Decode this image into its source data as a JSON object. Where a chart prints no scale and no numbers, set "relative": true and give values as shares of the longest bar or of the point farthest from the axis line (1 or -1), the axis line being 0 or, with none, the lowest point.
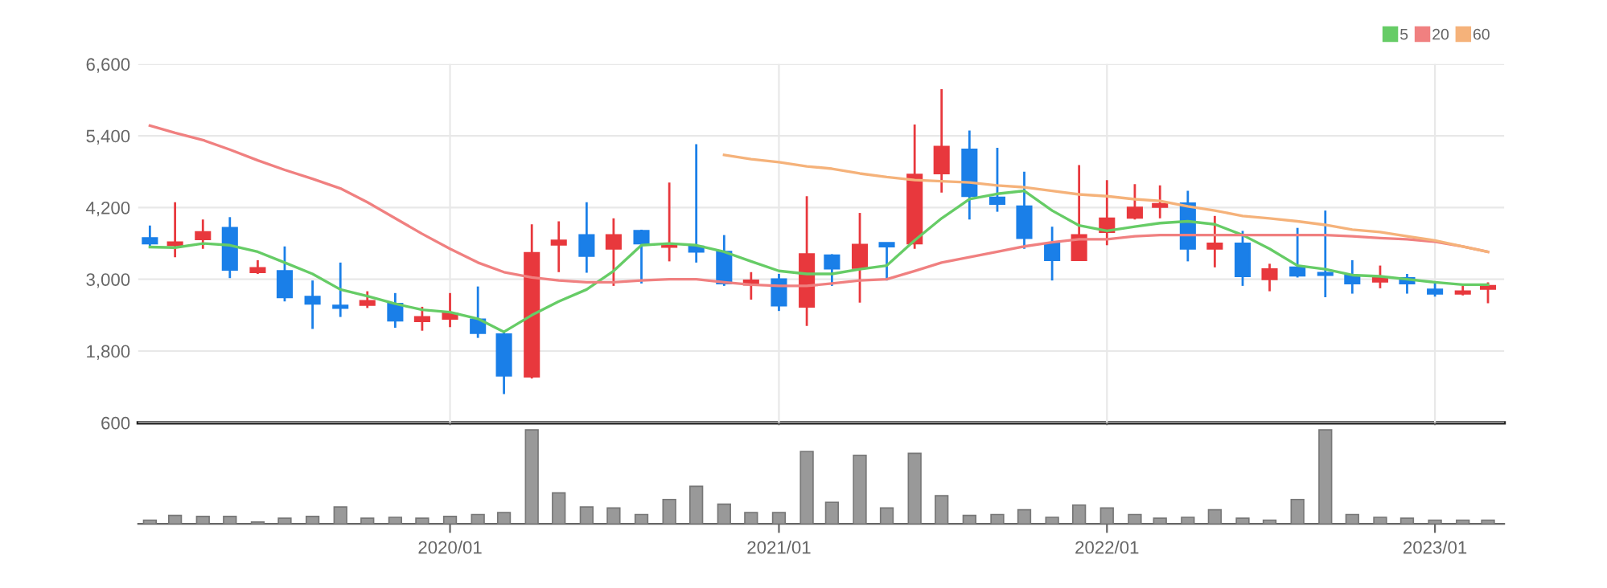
{
  "chart_data": [
    {
      "type": "candlestick",
      "x": [
        "2019-02",
        "2019-03",
        "2019-04",
        "2019-05",
        "2019-06",
        "2019-07",
        "2019-08",
        "2019-09",
        "2019-10",
        "2019-11",
        "2019-12",
        "2020-01",
        "2020-02",
        "2020-03",
        "2020-04",
        "2020-05",
        "2020-06",
        "2020-07",
        "2020-08",
        "2020-09",
        "2020-10",
        "2020-11",
        "2020-12",
        "2021-01",
        "2021-02",
        "2021-03",
        "2021-04",
        "2021-05",
        "2021-06",
        "2021-07",
        "2021-08",
        "2021-09",
        "2021-10",
        "2021-11",
        "2021-12",
        "2022-01",
        "2022-02",
        "2022-03",
        "2022-04",
        "2022-05",
        "2022-06",
        "2022-07",
        "2022-08",
        "2022-09",
        "2022-10",
        "2022-11",
        "2022-12",
        "2023-01",
        "2023-02",
        "2023-03"
      ],
      "ohlc": [
        [
          3690,
          3900,
          3550,
          3600
        ],
        [
          3570,
          4290,
          3370,
          3620
        ],
        [
          3670,
          4000,
          3510,
          3790
        ],
        [
          3860,
          4040,
          3020,
          3160
        ],
        [
          3120,
          3320,
          3090,
          3190
        ],
        [
          3140,
          3550,
          2630,
          2700
        ],
        [
          2710,
          2980,
          2170,
          2590
        ],
        [
          2560,
          3280,
          2370,
          2520
        ],
        [
          2570,
          2800,
          2520,
          2640
        ],
        [
          2590,
          2770,
          2190,
          2310
        ],
        [
          2300,
          2540,
          2140,
          2370
        ],
        [
          2340,
          2770,
          2200,
          2430
        ],
        [
          2330,
          2880,
          2020,
          2100
        ],
        [
          2080,
          2120,
          1080,
          1390
        ],
        [
          1370,
          3920,
          1340,
          3440
        ],
        [
          3580,
          3970,
          3120,
          3650
        ],
        [
          3740,
          4290,
          3110,
          3390
        ],
        [
          3510,
          4020,
          2890,
          3740
        ],
        [
          3810,
          3830,
          2930,
          3600
        ],
        [
          3540,
          4620,
          3300,
          3590
        ],
        [
          3550,
          5260,
          3280,
          3460
        ],
        [
          3460,
          3740,
          2890,
          2930
        ],
        [
          2910,
          3120,
          2660,
          2980
        ],
        [
          3000,
          3090,
          2470,
          2560
        ],
        [
          2540,
          4390,
          2220,
          3420
        ],
        [
          3400,
          3420,
          2890,
          3180
        ],
        [
          3190,
          4110,
          2610,
          3580
        ],
        [
          3610,
          3610,
          2980,
          3550
        ],
        [
          3600,
          5590,
          3510,
          4750
        ],
        [
          4770,
          6180,
          4450,
          5220
        ],
        [
          5170,
          5490,
          4000,
          4390
        ],
        [
          4370,
          5200,
          4130,
          4260
        ],
        [
          4220,
          4800,
          3510,
          3690
        ],
        [
          3600,
          3880,
          2980,
          3320
        ],
        [
          3320,
          4910,
          3310,
          3740
        ],
        [
          3790,
          4660,
          3570,
          4020
        ],
        [
          4030,
          4590,
          4000,
          4200
        ],
        [
          4210,
          4570,
          4020,
          4260
        ],
        [
          4270,
          4480,
          3300,
          3510
        ],
        [
          3510,
          4060,
          3200,
          3600
        ],
        [
          3600,
          3810,
          2890,
          3050
        ],
        [
          3000,
          3260,
          2800,
          3170
        ],
        [
          3200,
          3860,
          3030,
          3060
        ],
        [
          3110,
          4150,
          2700,
          3070
        ],
        [
          3060,
          3320,
          2760,
          2930
        ],
        [
          2960,
          3230,
          2850,
          3020
        ],
        [
          3020,
          3090,
          2760,
          2930
        ],
        [
          2830,
          2950,
          2710,
          2760
        ],
        [
          2760,
          2890,
          2730,
          2800
        ],
        [
          2840,
          2950,
          2600,
          2890
        ]
      ],
      "colors": [
        "#1a7fe8",
        "#e8383d",
        "#e8383d",
        "#1a7fe8",
        "#e8383d",
        "#1a7fe8",
        "#1a7fe8",
        "#1a7fe8",
        "#e8383d",
        "#1a7fe8",
        "#e8383d",
        "#e8383d",
        "#1a7fe8",
        "#1a7fe8",
        "#e8383d",
        "#e8383d",
        "#1a7fe8",
        "#e8383d",
        "#1a7fe8",
        "#e8383d",
        "#1a7fe8",
        "#1a7fe8",
        "#e8383d",
        "#1a7fe8",
        "#e8383d",
        "#1a7fe8",
        "#e8383d",
        "#1a7fe8",
        "#e8383d",
        "#e8383d",
        "#1a7fe8",
        "#1a7fe8",
        "#1a7fe8",
        "#1a7fe8",
        "#e8383d",
        "#e8383d",
        "#e8383d",
        "#e8383d",
        "#1a7fe8",
        "#e8383d",
        "#1a7fe8",
        "#e8383d",
        "#1a7fe8",
        "#1a7fe8",
        "#1a7fe8",
        "#e8383d",
        "#1a7fe8",
        "#1a7fe8",
        "#e8383d",
        "#e8383d"
      ],
      "series": [
        {
          "type": "line",
          "name": "5",
          "color": "#66cc66",
          "values": [
            3540,
            3530,
            3600,
            3570,
            3460,
            3280,
            3090,
            2830,
            2720,
            2590,
            2490,
            2450,
            2340,
            2120,
            2400,
            2630,
            2830,
            3140,
            3570,
            3600,
            3570,
            3460,
            3300,
            3140,
            3090,
            3090,
            3170,
            3230,
            3650,
            4020,
            4340,
            4430,
            4480,
            4150,
            3900,
            3810,
            3880,
            3940,
            3970,
            3920,
            3740,
            3510,
            3230,
            3170,
            3070,
            3050,
            3000,
            2950,
            2910,
            2910
          ]
        },
        {
          "type": "line",
          "name": "20",
          "color": "#f08080",
          "values": [
            5570,
            5450,
            5330,
            5170,
            4990,
            4830,
            4680,
            4520,
            4290,
            4020,
            3760,
            3510,
            3280,
            3120,
            3030,
            2980,
            2950,
            2950,
            2980,
            3000,
            3000,
            2950,
            2910,
            2890,
            2890,
            2930,
            2980,
            3000,
            3140,
            3280,
            3370,
            3460,
            3550,
            3620,
            3670,
            3670,
            3720,
            3740,
            3740,
            3740,
            3740,
            3740,
            3740,
            3740,
            3720,
            3690,
            3670,
            3630,
            3550,
            3460
          ]
        },
        {
          "type": "line",
          "name": "60",
          "color": "#f5b27a",
          "values": [
            null,
            null,
            null,
            null,
            null,
            null,
            null,
            null,
            null,
            null,
            null,
            null,
            null,
            null,
            null,
            null,
            null,
            null,
            null,
            null,
            null,
            5080,
            5010,
            4960,
            4890,
            4850,
            4770,
            4710,
            4660,
            4640,
            4620,
            4570,
            4540,
            4480,
            4420,
            4390,
            4340,
            4310,
            4220,
            4150,
            4060,
            4020,
            3970,
            3910,
            3830,
            3790,
            3720,
            3650,
            3550,
            3460
          ]
        }
      ],
      "xlim": [
        "2019-01-19",
        "2023-03-19"
      ],
      "xticks": [
        {
          "value": "2020-01",
          "label": null
        },
        {
          "value": "2021-01",
          "label": null
        },
        {
          "value": "2022-01",
          "label": null
        },
        {
          "value": "2023-01",
          "label": null
        }
      ],
      "ylim": [
        600,
        6600
      ],
      "yticks": [
        {
          "value": 600,
          "label": "600"
        },
        {
          "value": 1800,
          "label": "1,800"
        },
        {
          "value": 3000,
          "label": "3,000"
        },
        {
          "value": 4200,
          "label": "4,200"
        },
        {
          "value": 5400,
          "label": "5,400"
        },
        {
          "value": 6600,
          "label": "6,600"
        }
      ],
      "grid": true,
      "legend": "top right",
      "tick_labels": "y"
    },
    {
      "type": "bar",
      "x": [
        "2019-02",
        "2019-03",
        "2019-04",
        "2019-05",
        "2019-06",
        "2019-07",
        "2019-08",
        "2019-09",
        "2019-10",
        "2019-11",
        "2019-12",
        "2020-01",
        "2020-02",
        "2020-03",
        "2020-04",
        "2020-05",
        "2020-06",
        "2020-07",
        "2020-08",
        "2020-09",
        "2020-10",
        "2020-11",
        "2020-12",
        "2021-01",
        "2021-02",
        "2021-03",
        "2021-04",
        "2021-05",
        "2021-06",
        "2021-07",
        "2021-08",
        "2021-09",
        "2021-10",
        "2021-11",
        "2021-12",
        "2022-01",
        "2022-02",
        "2022-03",
        "2022-04",
        "2022-05",
        "2022-06",
        "2022-07",
        "2022-08",
        "2022-09",
        "2022-10",
        "2022-11",
        "2022-12",
        "2023-01",
        "2023-02",
        "2023-03"
      ],
      "values": [
        0.04,
        0.09,
        0.08,
        0.08,
        0.02,
        0.06,
        0.08,
        0.18,
        0.06,
        0.07,
        0.06,
        0.08,
        0.1,
        0.12,
        1,
        0.33,
        0.18,
        0.17,
        0.1,
        0.26,
        0.4,
        0.21,
        0.12,
        0.12,
        0.77,
        0.23,
        0.73,
        0.17,
        0.75,
        0.3,
        0.09,
        0.1,
        0.15,
        0.07,
        0.2,
        0.17,
        0.1,
        0.06,
        0.07,
        0.15,
        0.06,
        0.04,
        0.26,
        1,
        0.1,
        0.07,
        0.06,
        0.04,
        0.04,
        0.04
      ],
      "color": "#999999",
      "relative": true,
      "xlim": [
        "2019-01-19",
        "2023-03-19"
      ],
      "xticks": [
        {
          "value": "2020-01",
          "label": "2020/01"
        },
        {
          "value": "2021-01",
          "label": "2021/01"
        },
        {
          "value": "2022-01",
          "label": "2022/01"
        },
        {
          "value": "2023-01",
          "label": "2023/01"
        }
      ],
      "tick_labels": "x"
    }
  ]
}
